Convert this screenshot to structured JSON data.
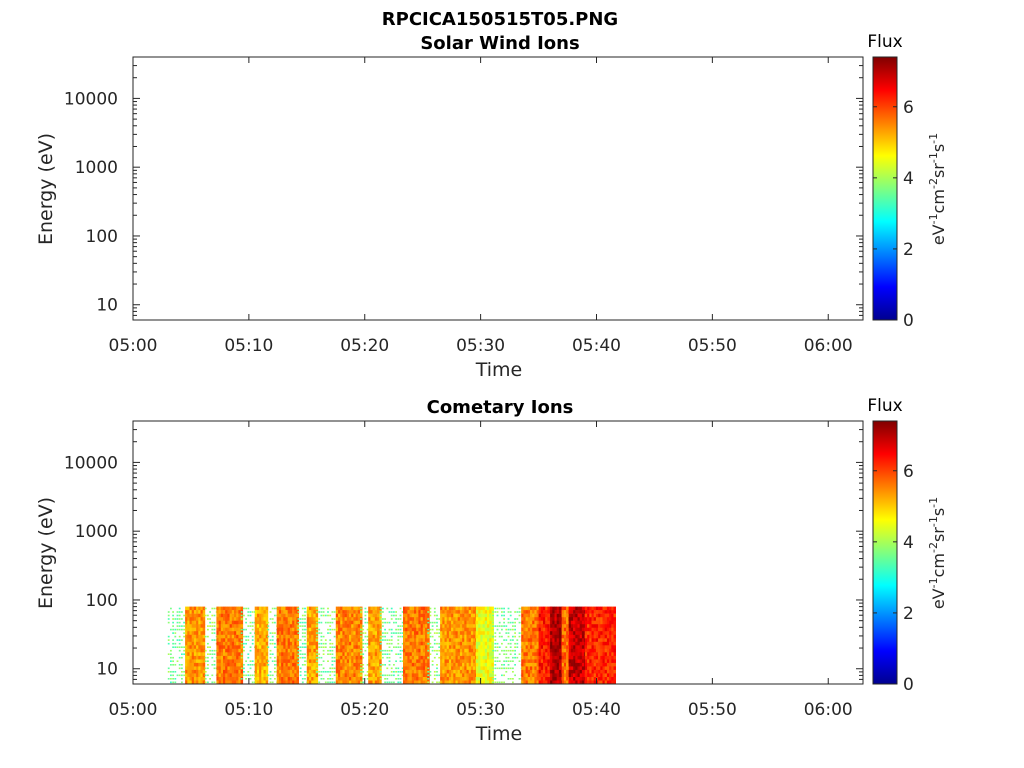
{
  "figure": {
    "title": "RPCICA150515T05.PNG"
  },
  "colors": {
    "axis": "#262626",
    "background": "#ffffff"
  },
  "chart_data": [
    {
      "type": "heatmap",
      "title": "Solar Wind Ions",
      "xlabel": "Time",
      "ylabel": "Energy (eV)",
      "x_ticks": [
        "05:00",
        "05:10",
        "05:20",
        "05:30",
        "05:40",
        "05:50",
        "06:00"
      ],
      "xlim_minutes": [
        0,
        63
      ],
      "y_scale": "log",
      "y_ticks": [
        "10",
        "100",
        "1000",
        "10000"
      ],
      "ylim": [
        6,
        40000
      ],
      "colorbar": {
        "label": "Flux",
        "unit": "eV-1cm-2sr-1s-1",
        "ticks": [
          "0",
          "2",
          "4",
          "6"
        ],
        "range": [
          0,
          7.4
        ],
        "colormap": "jet"
      },
      "segments": []
    },
    {
      "type": "heatmap",
      "title": "Cometary Ions",
      "xlabel": "Time",
      "ylabel": "Energy (eV)",
      "x_ticks": [
        "05:00",
        "05:10",
        "05:20",
        "05:30",
        "05:40",
        "05:50",
        "06:00"
      ],
      "xlim_minutes": [
        0,
        63
      ],
      "y_scale": "log",
      "y_ticks": [
        "10",
        "100",
        "1000",
        "10000"
      ],
      "ylim": [
        6,
        40000
      ],
      "colorbar": {
        "label": "Flux",
        "unit": "eV-1cm-2sr-1s-1",
        "ticks": [
          "0",
          "2",
          "4",
          "6"
        ],
        "range": [
          0,
          7.4
        ],
        "colormap": "jet"
      },
      "data_energy_range_eV": [
        6,
        80
      ],
      "segments": [
        {
          "start": 3.0,
          "end": 4.5,
          "flux": 3.6,
          "sparse": true
        },
        {
          "start": 4.5,
          "end": 6.2,
          "flux": 5.4
        },
        {
          "start": 6.2,
          "end": 7.2,
          "flux": 3.8,
          "sparse": true
        },
        {
          "start": 7.2,
          "end": 9.3,
          "flux": 5.6
        },
        {
          "start": 9.3,
          "end": 10.5,
          "flux": 3.6,
          "sparse": true
        },
        {
          "start": 10.5,
          "end": 11.6,
          "flux": 5.2
        },
        {
          "start": 11.6,
          "end": 12.4,
          "flux": 3.7,
          "sparse": true
        },
        {
          "start": 12.4,
          "end": 14.2,
          "flux": 5.6
        },
        {
          "start": 14.2,
          "end": 15.0,
          "flux": 3.6,
          "sparse": true
        },
        {
          "start": 15.0,
          "end": 15.8,
          "flux": 5.3
        },
        {
          "start": 15.8,
          "end": 17.5,
          "flux": 3.7,
          "sparse": true
        },
        {
          "start": 17.5,
          "end": 19.6,
          "flux": 5.5
        },
        {
          "start": 19.6,
          "end": 20.3,
          "flux": 3.8,
          "sparse": true
        },
        {
          "start": 20.3,
          "end": 21.3,
          "flux": 5.3
        },
        {
          "start": 21.3,
          "end": 23.3,
          "flux": 3.6,
          "sparse": true
        },
        {
          "start": 23.3,
          "end": 25.4,
          "flux": 5.6
        },
        {
          "start": 25.4,
          "end": 26.5,
          "flux": 3.8,
          "sparse": true
        },
        {
          "start": 26.5,
          "end": 29.6,
          "flux": 5.4
        },
        {
          "start": 29.6,
          "end": 31.0,
          "flux": 4.5
        },
        {
          "start": 31.0,
          "end": 33.5,
          "flux": 3.7,
          "sparse": true
        },
        {
          "start": 33.5,
          "end": 35.0,
          "flux": 5.6
        },
        {
          "start": 35.0,
          "end": 36.0,
          "flux": 6.3
        },
        {
          "start": 36.0,
          "end": 37.0,
          "flux": 7.0
        },
        {
          "start": 37.0,
          "end": 37.6,
          "flux": 5.7
        },
        {
          "start": 37.6,
          "end": 39.0,
          "flux": 6.9
        },
        {
          "start": 39.0,
          "end": 41.5,
          "flux": 6.2
        }
      ]
    }
  ]
}
